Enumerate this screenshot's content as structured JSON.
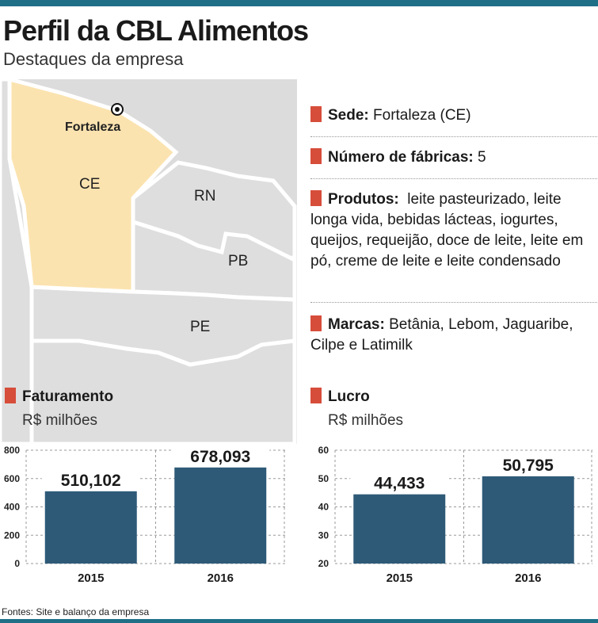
{
  "header": {
    "title": "Perfil da CBL Alimentos",
    "subtitle": "Destaques da empresa"
  },
  "map": {
    "city": "Fortaleza",
    "states": [
      "CE",
      "RN",
      "PB",
      "PE"
    ]
  },
  "facts": [
    {
      "label": "Sede:",
      "value": "Fortaleza (CE)"
    },
    {
      "label": "Número de fábricas:",
      "value": "5"
    },
    {
      "label": "Produtos:",
      "value": "leite pasteurizado, leite longa vida, bebidas lácteas, iogurtes, queijos, requeijão, doce de leite, leite em pó, creme de leite e leite condensado"
    },
    {
      "label": "Marcas:",
      "value": "Betânia, Lebom, Jaguaribe, Cilpe e Latimilk"
    }
  ],
  "colors": {
    "accent_square": "#d64d3a",
    "bar": "#2e5a78",
    "highlight_state": "#fbe3b0",
    "other_states": "#dedede",
    "top_bar": "#1f6f87"
  },
  "chart_data": [
    {
      "type": "bar",
      "title": "Faturamento",
      "ylabel": "R$ milhões",
      "categories": [
        "2015",
        "2016"
      ],
      "values": [
        510.102,
        678.093
      ],
      "value_labels": [
        "510,102",
        "678,093"
      ],
      "ylim": [
        0,
        800
      ],
      "yticks": [
        0,
        200,
        400,
        600,
        800
      ],
      "grid": true
    },
    {
      "type": "bar",
      "title": "Lucro",
      "ylabel": "R$ milhões",
      "categories": [
        "2015",
        "2016"
      ],
      "values": [
        44.433,
        50.795
      ],
      "value_labels": [
        "44,433",
        "50,795"
      ],
      "ylim": [
        20,
        60
      ],
      "yticks": [
        20,
        30,
        40,
        50,
        60
      ],
      "grid": true
    }
  ],
  "footer": "Fontes: Site e balanço da empresa"
}
